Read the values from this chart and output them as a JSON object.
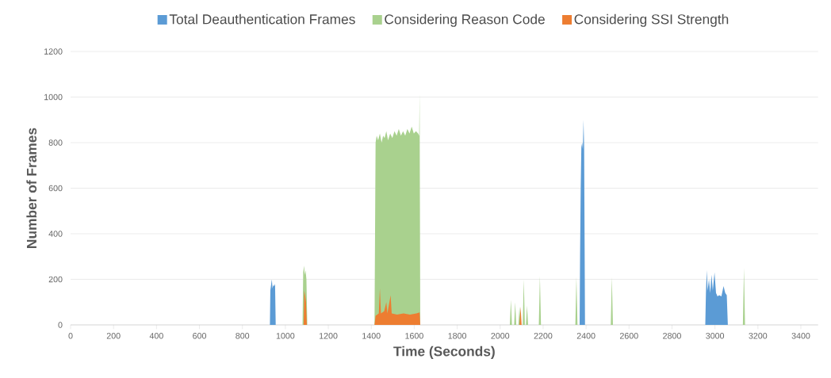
{
  "chart_data": {
    "type": "area",
    "xlabel": "Time (Seconds)",
    "ylabel": "Number of Frames",
    "xlim": [
      0,
      3480
    ],
    "ylim": [
      0,
      1200
    ],
    "xticks": [
      0,
      200,
      400,
      600,
      800,
      1000,
      1200,
      1400,
      1600,
      1800,
      2000,
      2200,
      2400,
      2600,
      2800,
      3000,
      3200,
      3400
    ],
    "yticks": [
      0,
      200,
      400,
      600,
      800,
      1000,
      1200
    ],
    "grid": "y",
    "legend": "top",
    "series": [
      {
        "name": "Total Deauthentication Frames",
        "color": "#5b9bd5",
        "x": [
          0,
          928,
          930,
          934,
          937,
          940,
          944,
          948,
          952,
          955,
          2370,
          2372,
          2375,
          2378,
          2382,
          2385,
          2388,
          2391,
          2395,
          2955,
          2958,
          2962,
          2966,
          2972,
          2978,
          2984,
          2990,
          2998,
          3005,
          3012,
          3020,
          3030,
          3040,
          3048,
          3055,
          3060,
          3480
        ],
        "values": [
          0,
          0,
          150,
          180,
          200,
          160,
          175,
          170,
          180,
          0,
          0,
          300,
          600,
          780,
          800,
          770,
          900,
          780,
          0,
          0,
          140,
          240,
          150,
          200,
          140,
          220,
          150,
          230,
          140,
          125,
          130,
          125,
          170,
          140,
          130,
          0,
          0
        ]
      },
      {
        "name": "Considering Reason Code",
        "color": "#a9d18e",
        "x": [
          0,
          1080,
          1083,
          1087,
          1090,
          1094,
          1098,
          1102,
          1415,
          1420,
          1425,
          1432,
          1440,
          1448,
          1455,
          1462,
          1470,
          1478,
          1488,
          1498,
          1508,
          1518,
          1528,
          1538,
          1548,
          1558,
          1568,
          1578,
          1588,
          1598,
          1608,
          1618,
          1623,
          1625,
          1628,
          2045,
          2050,
          2055,
          2065,
          2070,
          2075,
          2085,
          2090,
          2095,
          2105,
          2110,
          2115,
          2120,
          2125,
          2130,
          2180,
          2185,
          2190,
          2350,
          2355,
          2360,
          2515,
          2520,
          2525,
          3130,
          3135,
          3140,
          3480
        ],
        "values": [
          0,
          0,
          230,
          260,
          220,
          240,
          200,
          0,
          0,
          800,
          830,
          810,
          840,
          800,
          830,
          820,
          850,
          810,
          840,
          820,
          850,
          830,
          860,
          830,
          850,
          830,
          860,
          840,
          870,
          840,
          850,
          840,
          830,
          1020,
          0,
          0,
          110,
          0,
          0,
          100,
          0,
          0,
          80,
          0,
          0,
          200,
          0,
          0,
          85,
          0,
          0,
          215,
          0,
          0,
          210,
          0,
          0,
          210,
          0,
          0,
          250,
          0,
          0
        ]
      },
      {
        "name": "Considering SSI Strength",
        "color": "#ed7d31",
        "x": [
          0,
          1085,
          1088,
          1092,
          1096,
          1100,
          1415,
          1420,
          1435,
          1440,
          1445,
          1460,
          1470,
          1475,
          1490,
          1495,
          1520,
          1550,
          1580,
          1610,
          1625,
          1628,
          2090,
          2095,
          2100,
          3480
        ],
        "values": [
          0,
          0,
          150,
          130,
          100,
          0,
          0,
          40,
          50,
          160,
          50,
          60,
          100,
          50,
          130,
          50,
          45,
          50,
          45,
          50,
          55,
          0,
          0,
          80,
          0,
          0
        ]
      }
    ]
  }
}
